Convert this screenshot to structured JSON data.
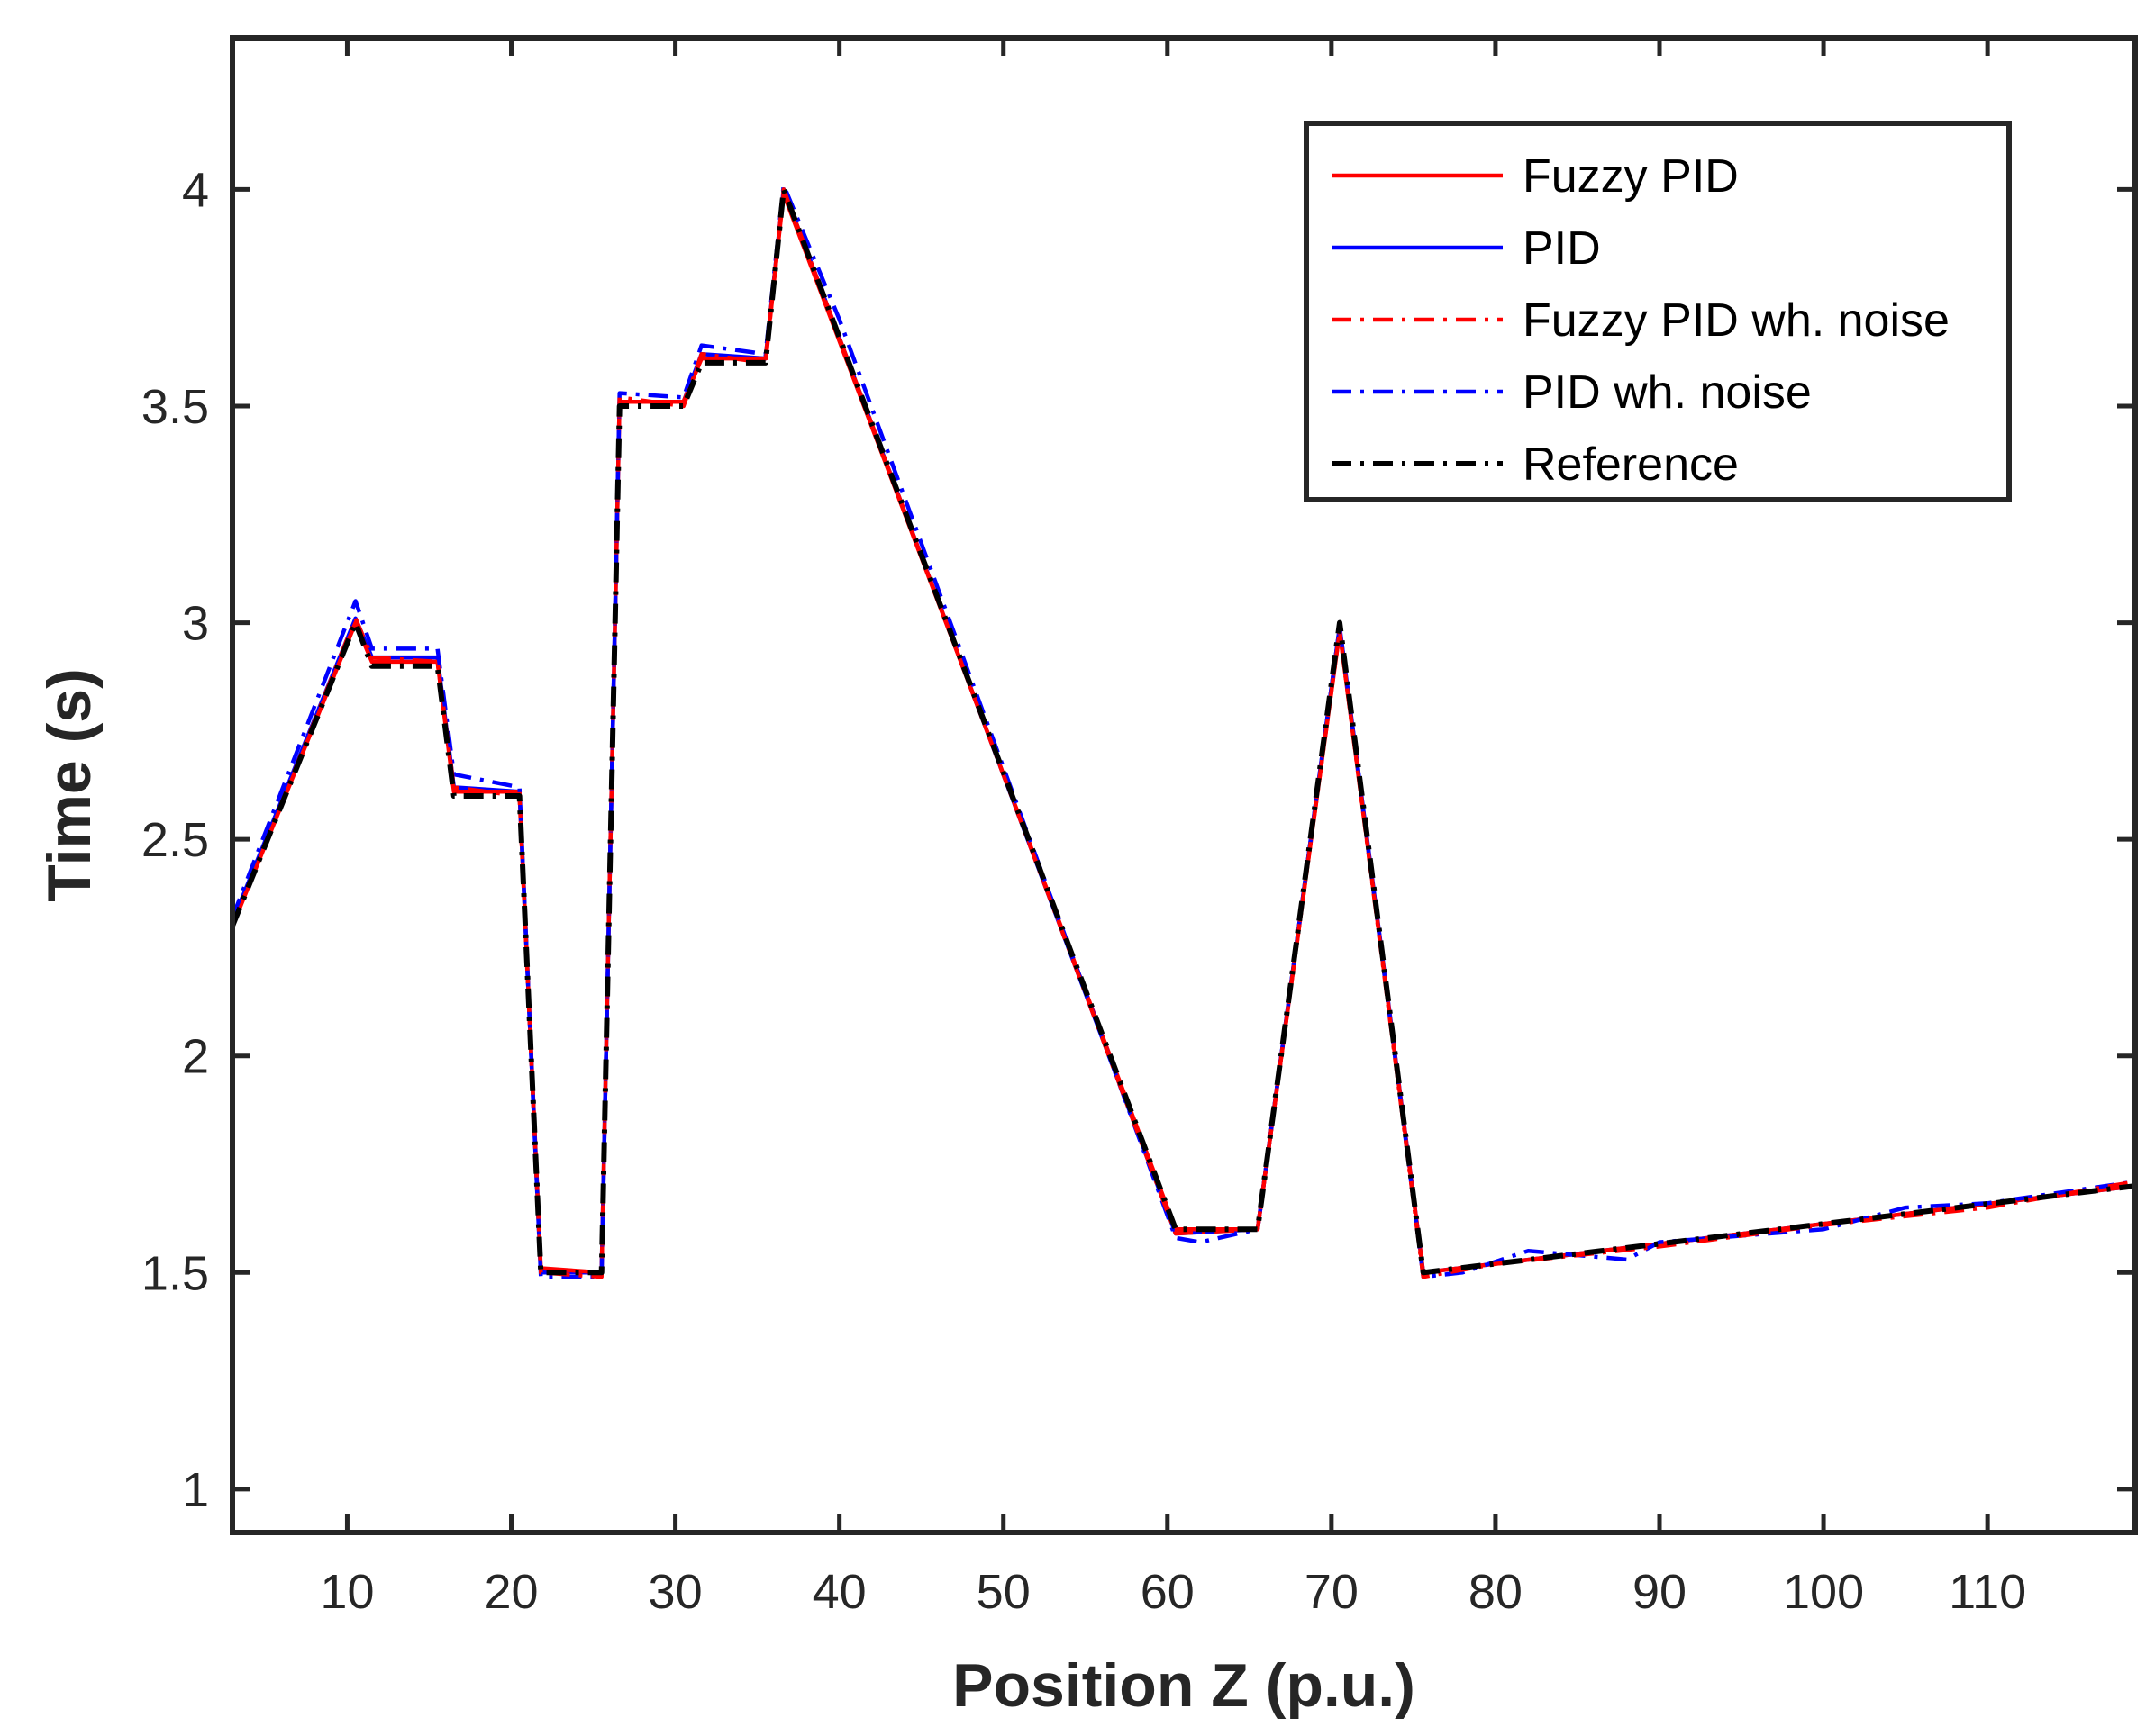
{
  "chart_data": {
    "type": "line",
    "title": "",
    "xlabel": "Position Z (p.u.)",
    "ylabel": "Time (s)",
    "xlim": [
      3,
      119
    ],
    "ylim": [
      0.9,
      4.35
    ],
    "xticks": [
      10,
      20,
      30,
      40,
      50,
      60,
      70,
      80,
      90,
      100,
      110
    ],
    "yticks": [
      1,
      1.5,
      2,
      2.5,
      3,
      3.5,
      4
    ],
    "xtick_labels": [
      "10",
      "20",
      "30",
      "40",
      "50",
      "60",
      "70",
      "80",
      "90",
      "100",
      "110"
    ],
    "ytick_labels": [
      "1",
      "1.5",
      "2",
      "2.5",
      "3",
      "3.5",
      "4"
    ],
    "grid": false,
    "legend_position": "top-right",
    "series": [
      {
        "name": "Fuzzy PID",
        "color": "#ff0000",
        "style": "solid",
        "x": [
          3,
          10.5,
          11.5,
          15.5,
          16.5,
          20.5,
          21.8,
          25.5,
          26.6,
          30.5,
          31.6,
          35.5,
          36.6,
          60.5,
          65.5,
          70.5,
          75.6,
          119
        ],
        "y": [
          2.3,
          3.0,
          2.91,
          2.91,
          2.61,
          2.61,
          1.51,
          1.5,
          3.51,
          3.51,
          3.61,
          3.61,
          3.99,
          1.6,
          1.6,
          2.98,
          1.5,
          1.7
        ]
      },
      {
        "name": "PID",
        "color": "#0000ff",
        "style": "solid",
        "x": [
          3,
          10.5,
          11.5,
          15.5,
          16.5,
          20.5,
          21.8,
          25.5,
          26.6,
          30.5,
          31.6,
          35.5,
          36.6,
          60.5,
          65.5,
          70.5,
          75.6,
          119
        ],
        "y": [
          2.31,
          3.01,
          2.92,
          2.92,
          2.62,
          2.61,
          1.5,
          1.5,
          3.51,
          3.51,
          3.62,
          3.61,
          4.0,
          1.59,
          1.6,
          2.99,
          1.5,
          1.7
        ]
      },
      {
        "name": "Fuzzy PID wh. noise",
        "color": "#ff0000",
        "style": "dashdot",
        "x": [
          3,
          10.5,
          11.5,
          15.5,
          16.5,
          20.5,
          21.8,
          25.5,
          26.6,
          30.5,
          31.6,
          35.5,
          36.6,
          60.5,
          65.5,
          70.5,
          75.6,
          80,
          90,
          100,
          110,
          119
        ],
        "y": [
          2.3,
          3.01,
          2.92,
          2.91,
          2.62,
          2.6,
          1.5,
          1.49,
          3.52,
          3.5,
          3.62,
          3.6,
          4.0,
          1.59,
          1.6,
          2.98,
          1.49,
          1.52,
          1.56,
          1.61,
          1.65,
          1.71
        ]
      },
      {
        "name": "PID wh. noise",
        "color": "#0000ff",
        "style": "dashdot",
        "x": [
          3,
          10.5,
          11.5,
          15.5,
          16.5,
          20.5,
          21.8,
          25.5,
          26.6,
          30.5,
          31.6,
          35.5,
          36.6,
          40,
          60.5,
          62,
          65.5,
          70.5,
          75.6,
          78,
          82,
          88,
          90,
          100,
          105,
          110,
          119
        ],
        "y": [
          2.32,
          3.05,
          2.94,
          2.94,
          2.65,
          2.62,
          1.49,
          1.49,
          3.53,
          3.52,
          3.64,
          3.62,
          4.01,
          3.7,
          1.58,
          1.57,
          1.6,
          2.99,
          1.49,
          1.5,
          1.55,
          1.53,
          1.57,
          1.6,
          1.65,
          1.66,
          1.71
        ]
      },
      {
        "name": "Reference",
        "color": "#000000",
        "style": "dashdot",
        "x": [
          3,
          10.5,
          11.5,
          15.5,
          16.5,
          20.5,
          21.8,
          25.5,
          26.6,
          30.5,
          31.6,
          35.5,
          36.6,
          60.5,
          65.5,
          70.5,
          75.6,
          119
        ],
        "y": [
          2.3,
          3.0,
          2.9,
          2.9,
          2.6,
          2.6,
          1.5,
          1.5,
          3.5,
          3.5,
          3.6,
          3.6,
          4.0,
          1.6,
          1.6,
          3.0,
          1.5,
          1.7
        ]
      }
    ]
  }
}
